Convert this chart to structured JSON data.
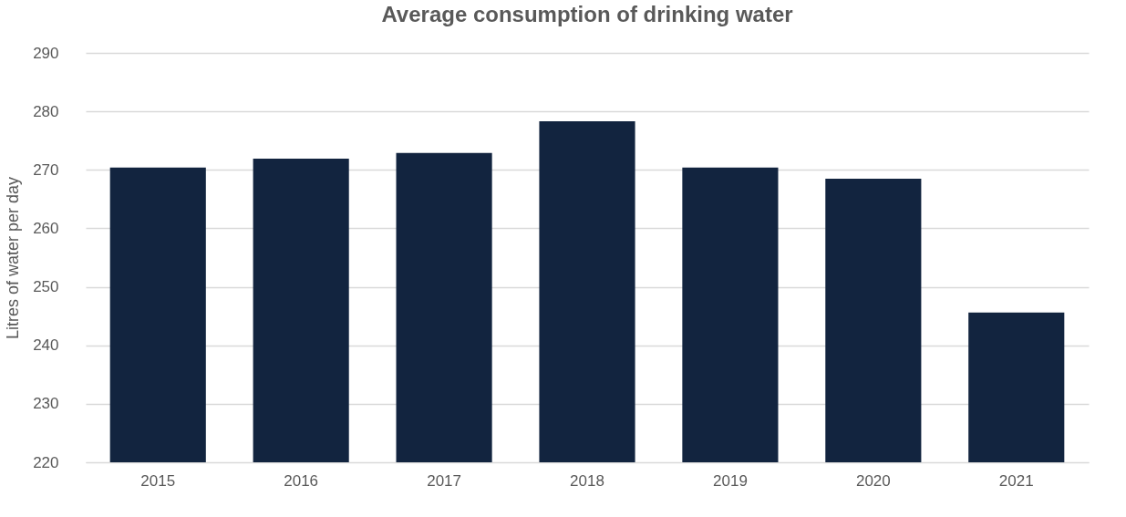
{
  "chart_data": {
    "type": "bar",
    "title": "Average consumption of drinking water",
    "ylabel": "Litres of water per day",
    "categories": [
      "2015",
      "2016",
      "2017",
      "2018",
      "2019",
      "2020",
      "2021"
    ],
    "values": [
      270.4,
      271.9,
      272.9,
      278.3,
      270.4,
      268.5,
      245.6
    ],
    "color": "#12243f",
    "ylim": [
      220,
      290
    ],
    "yticks": [
      220,
      230,
      240,
      250,
      260,
      270,
      280,
      290
    ],
    "grid": "y"
  }
}
